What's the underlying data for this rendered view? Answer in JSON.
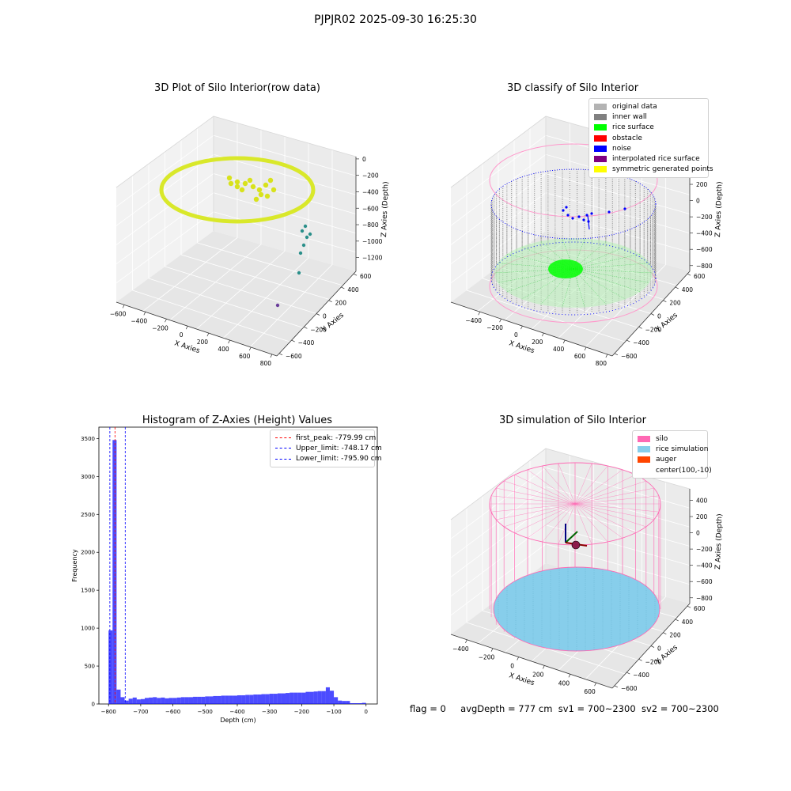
{
  "figure": {
    "suptitle": "PJPJR02 2025-09-30 16:25:30",
    "footer": {
      "flag": "flag = 0",
      "avg_depth": "avgDepth = 777 cm",
      "sv1": "sv1 = 700~2300",
      "sv2": "sv2 = 700~2300"
    }
  },
  "chart_data": [
    {
      "type": "scatter",
      "title": "3D Plot of Silo Interior(row data)",
      "xlabel": "X Axies",
      "ylabel": "Y Axies",
      "zlabel": "Z Axies (Depth)",
      "x_ticks": [
        "−600",
        "−400",
        "−200",
        "0",
        "200",
        "400",
        "600",
        "800"
      ],
      "y_ticks": [
        "600",
        "400",
        "200",
        "0",
        "−200",
        "−400",
        "−600"
      ],
      "z_ticks": [
        "0",
        "−200",
        "−400",
        "−600",
        "−800",
        "−1000",
        "−1200"
      ],
      "colormap": "viridis"
    },
    {
      "type": "scatter",
      "title": "3D classify of Silo Interior",
      "xlabel": "X Axies",
      "ylabel": "Y Axies",
      "zlabel": "Z Axies (Depth)",
      "x_ticks": [
        "−400",
        "−200",
        "0",
        "200",
        "400",
        "600",
        "800"
      ],
      "y_ticks": [
        "600",
        "400",
        "200",
        "0",
        "−200",
        "−400",
        "−600"
      ],
      "z_ticks": [
        "400",
        "200",
        "0",
        "−200",
        "−400",
        "−600",
        "−800"
      ],
      "legend": [
        {
          "label": "original data",
          "color": "#b3b3b3"
        },
        {
          "label": "inner wall",
          "color": "#808080"
        },
        {
          "label": "rice surface",
          "color": "#00ff00"
        },
        {
          "label": "obstacle",
          "color": "#ff0000"
        },
        {
          "label": "noise",
          "color": "#0000ff"
        },
        {
          "label": "interpolated rice surface",
          "color": "#800080"
        },
        {
          "label": "symmetric generated points",
          "color": "#ffff00"
        }
      ]
    },
    {
      "type": "bar",
      "title": "Histogram of Z-Axies (Height) Values",
      "xlabel": "Depth (cm)",
      "ylabel": "Frequency",
      "xlim": [
        -830,
        35
      ],
      "ylim": [
        0,
        3650
      ],
      "x_ticks": [
        -800,
        -700,
        -600,
        -500,
        -400,
        -300,
        -200,
        -100,
        0
      ],
      "x_tick_labels": [
        "−800",
        "−700",
        "−600",
        "−500",
        "−400",
        "−300",
        "−200",
        "−100",
        "0"
      ],
      "y_ticks": [
        0,
        500,
        1000,
        1500,
        2000,
        2500,
        3000,
        3500
      ],
      "bin_width": 12.5,
      "bins_start": [
        -800,
        -787.5,
        -775,
        -762.5,
        -750,
        -737.5,
        -725,
        -712.5,
        -700,
        -687.5,
        -675,
        -662.5,
        -650,
        -637.5,
        -625,
        -612.5,
        -600,
        -587.5,
        -575,
        -562.5,
        -550,
        -537.5,
        -525,
        -512.5,
        -500,
        -487.5,
        -475,
        -462.5,
        -450,
        -437.5,
        -425,
        -412.5,
        -400,
        -387.5,
        -375,
        -362.5,
        -350,
        -337.5,
        -325,
        -312.5,
        -300,
        -287.5,
        -275,
        -262.5,
        -250,
        -237.5,
        -225,
        -212.5,
        -200,
        -187.5,
        -175,
        -162.5,
        -150,
        -137.5,
        -125,
        -112.5,
        -100,
        -87.5,
        -75,
        -62.5,
        -50,
        -37.5,
        -25,
        -12.5
      ],
      "values": [
        970,
        3480,
        190,
        90,
        45,
        70,
        85,
        60,
        65,
        80,
        85,
        90,
        80,
        85,
        75,
        80,
        80,
        85,
        90,
        90,
        90,
        95,
        95,
        95,
        100,
        100,
        105,
        105,
        110,
        110,
        110,
        110,
        115,
        115,
        120,
        120,
        125,
        125,
        130,
        130,
        135,
        135,
        140,
        140,
        145,
        150,
        150,
        150,
        150,
        160,
        160,
        165,
        170,
        170,
        220,
        175,
        90,
        45,
        40,
        40,
        10,
        10,
        10,
        15
      ],
      "bar_color": "#0000ff",
      "vlines": [
        {
          "label": "first_peak: -779.99 cm",
          "x": -779.99,
          "color": "#ff0000"
        },
        {
          "label": "Upper_limit: -748.17 cm",
          "x": -748.17,
          "color": "#0000ff"
        },
        {
          "label": "Lower_limit: -795.90 cm",
          "x": -795.9,
          "color": "#0000ff"
        }
      ]
    },
    {
      "type": "scatter",
      "title": "3D simulation of Silo Interior",
      "xlabel": "X Axies",
      "ylabel": "Y Axies",
      "zlabel": "Z Axies (Depth)",
      "x_ticks": [
        "−400",
        "−200",
        "0",
        "200",
        "400",
        "600"
      ],
      "y_ticks": [
        "600",
        "400",
        "200",
        "0",
        "−200",
        "−400",
        "−600"
      ],
      "z_ticks": [
        "400",
        "200",
        "0",
        "−200",
        "−400",
        "−600",
        "−800"
      ],
      "legend": [
        {
          "label": "silo",
          "color": "#ff69b4"
        },
        {
          "label": "rice simulation",
          "color": "#87ceeb"
        },
        {
          "label": "auger",
          "color": "#ff4500"
        },
        {
          "label": "center(100,-10)",
          "color": ""
        }
      ]
    }
  ]
}
